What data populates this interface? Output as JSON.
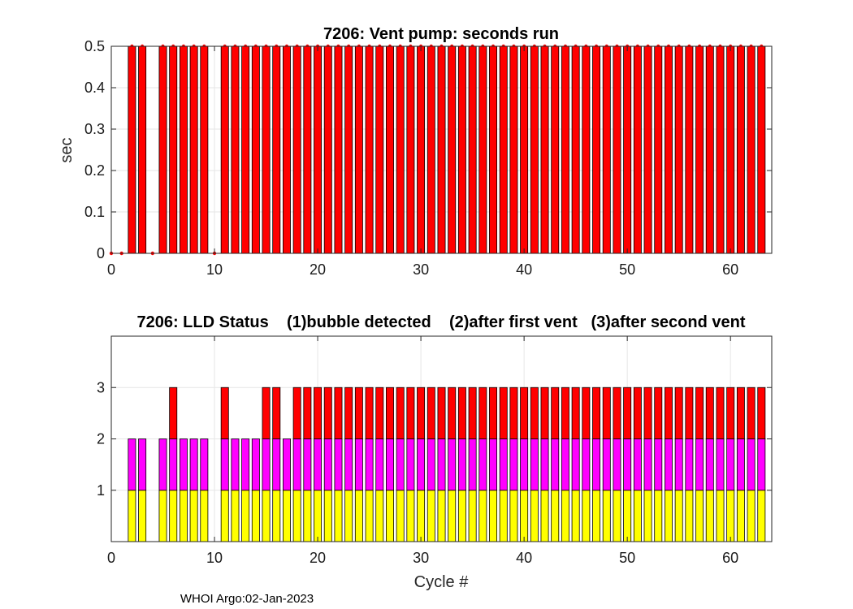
{
  "footer": "WHOI Argo:02-Jan-2023",
  "colors": {
    "pump": "#ff0000",
    "status1": "#ffff00",
    "status2": "#ff00ff",
    "status3": "#ff0000",
    "grid": "#e6e6e6"
  },
  "chart_data": [
    {
      "type": "bar",
      "title": "7206: Vent pump: seconds run",
      "xlabel": "",
      "ylabel": "sec",
      "xlim": [
        0,
        64
      ],
      "ylim": [
        0,
        0.5
      ],
      "xticks": [
        "0",
        "10",
        "20",
        "30",
        "40",
        "50",
        "60"
      ],
      "yticks": [
        "0",
        "0.1",
        "0.2",
        "0.3",
        "0.4",
        "0.5"
      ],
      "grid": true,
      "markers": "red dot at top of every bar",
      "x": [
        0,
        1,
        2,
        3,
        4,
        5,
        6,
        7,
        8,
        9,
        10,
        11,
        12,
        13,
        14,
        15,
        16,
        17,
        18,
        19,
        20,
        21,
        22,
        23,
        24,
        25,
        26,
        27,
        28,
        29,
        30,
        31,
        32,
        33,
        34,
        35,
        36,
        37,
        38,
        39,
        40,
        41,
        42,
        43,
        44,
        45,
        46,
        47,
        48,
        49,
        50,
        51,
        52,
        53,
        54,
        55,
        56,
        57,
        58,
        59,
        60,
        61,
        62,
        63
      ],
      "values": [
        0,
        0,
        0.5,
        0.5,
        0,
        0.5,
        0.5,
        0.5,
        0.5,
        0.5,
        0,
        0.5,
        0.5,
        0.5,
        0.5,
        0.5,
        0.5,
        0.5,
        0.5,
        0.5,
        0.5,
        0.5,
        0.5,
        0.5,
        0.5,
        0.5,
        0.5,
        0.5,
        0.5,
        0.5,
        0.5,
        0.5,
        0.5,
        0.5,
        0.5,
        0.5,
        0.5,
        0.5,
        0.5,
        0.5,
        0.5,
        0.5,
        0.5,
        0.5,
        0.5,
        0.5,
        0.5,
        0.5,
        0.5,
        0.5,
        0.5,
        0.5,
        0.5,
        0.5,
        0.5,
        0.5,
        0.5,
        0.5,
        0.5,
        0.5,
        0.5,
        0.5,
        0.5,
        0.5
      ]
    },
    {
      "type": "bar",
      "title": "7206: LLD Status    (1)bubble detected    (2)after first vent   (3)after second vent",
      "xlabel": "Cycle #",
      "ylabel": "",
      "xlim": [
        0,
        64
      ],
      "ylim": [
        0,
        4
      ],
      "xticks": [
        "0",
        "10",
        "20",
        "30",
        "40",
        "50",
        "60"
      ],
      "yticks": [
        "1",
        "2",
        "3"
      ],
      "grid": true,
      "stacked_levels": [
        "1",
        "2",
        "3"
      ],
      "x": [
        2,
        3,
        5,
        6,
        7,
        8,
        9,
        11,
        12,
        13,
        14,
        15,
        16,
        17,
        18,
        19,
        20,
        21,
        22,
        23,
        24,
        25,
        26,
        27,
        28,
        29,
        30,
        31,
        32,
        33,
        34,
        35,
        36,
        37,
        38,
        39,
        40,
        41,
        42,
        43,
        44,
        45,
        46,
        47,
        48,
        49,
        50,
        51,
        52,
        53,
        54,
        55,
        56,
        57,
        58,
        59,
        60,
        61,
        62,
        63
      ],
      "values": [
        2,
        2,
        2,
        3,
        2,
        2,
        2,
        3,
        2,
        2,
        2,
        3,
        3,
        2,
        3,
        3,
        3,
        3,
        3,
        3,
        3,
        3,
        3,
        3,
        3,
        3,
        3,
        3,
        3,
        3,
        3,
        3,
        3,
        3,
        3,
        3,
        3,
        3,
        3,
        3,
        3,
        3,
        3,
        3,
        3,
        3,
        3,
        3,
        3,
        3,
        3,
        3,
        3,
        3,
        3,
        3,
        3,
        3,
        3,
        3
      ]
    }
  ]
}
